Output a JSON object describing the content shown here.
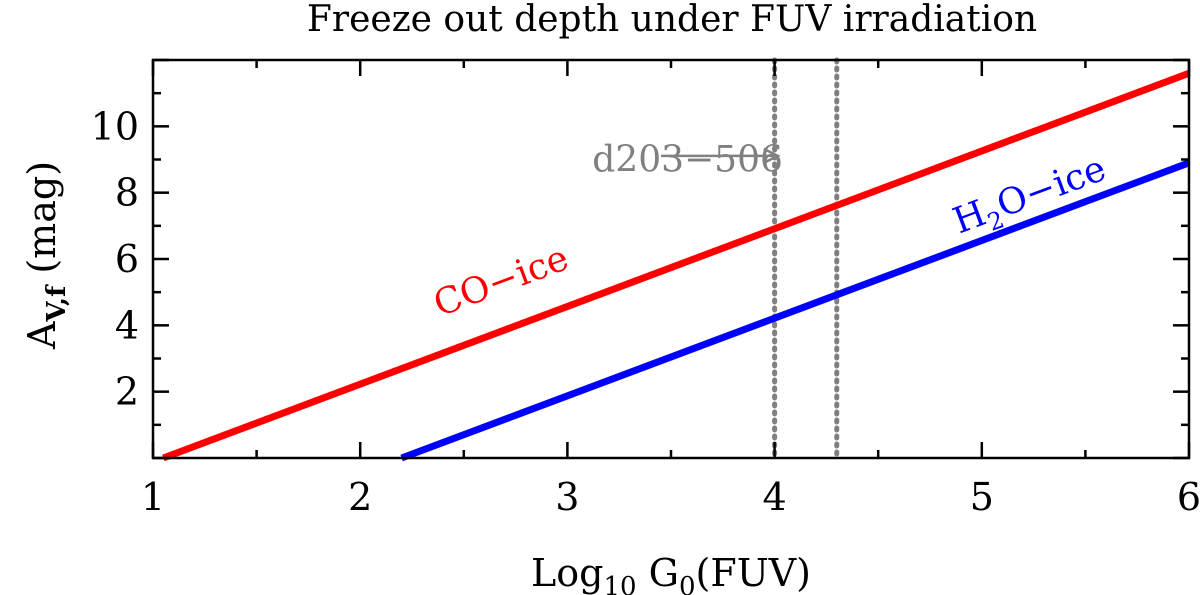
{
  "chart_data": {
    "type": "line",
    "title": "Freeze out depth under FUV irradiation",
    "xlabel": {
      "main": "Log",
      "sub": "10",
      "mid": " G",
      "sub2": "0",
      "tail": "(FUV)"
    },
    "ylabel": {
      "main": "A",
      "sub": "V,f",
      "tail": "  (mag)"
    },
    "xlim": [
      1,
      6
    ],
    "ylim": [
      0,
      12
    ],
    "x_ticks": [
      1,
      2,
      3,
      4,
      5,
      6
    ],
    "x_tick_labels": [
      "1",
      "2",
      "3",
      "4",
      "5",
      "6"
    ],
    "y_ticks": [
      2,
      4,
      6,
      8,
      10
    ],
    "y_tick_labels": [
      "2",
      "4",
      "6",
      "8",
      "10"
    ],
    "series": [
      {
        "name": "CO-ice",
        "color": "#ff0000",
        "x": [
          1.05,
          6.0
        ],
        "y": [
          0.0,
          11.6
        ],
        "label": {
          "text": "CO−ice",
          "at_x": 2.7,
          "at_y": 5.0
        }
      },
      {
        "name": "H2O-ice",
        "color": "#0000ff",
        "x": [
          2.2,
          6.0
        ],
        "y": [
          0.0,
          8.9
        ],
        "label": {
          "main": "H",
          "sub": "2",
          "tail": "O−ice",
          "at_x": 5.25,
          "at_y": 7.6
        }
      }
    ],
    "vlines": [
      {
        "x": 4.0,
        "color": "#808080",
        "style": "dotted"
      },
      {
        "x": 4.3,
        "color": "#808080",
        "style": "dotted"
      }
    ],
    "annotation": {
      "text": "d203−506",
      "color": "#808080",
      "text_x": 3.12,
      "text_y": 9.0,
      "arrow_from_x": 3.92,
      "arrow_to_x": 4.86,
      "arrow_y": 9.2
    },
    "grid": false,
    "legend": "none"
  }
}
